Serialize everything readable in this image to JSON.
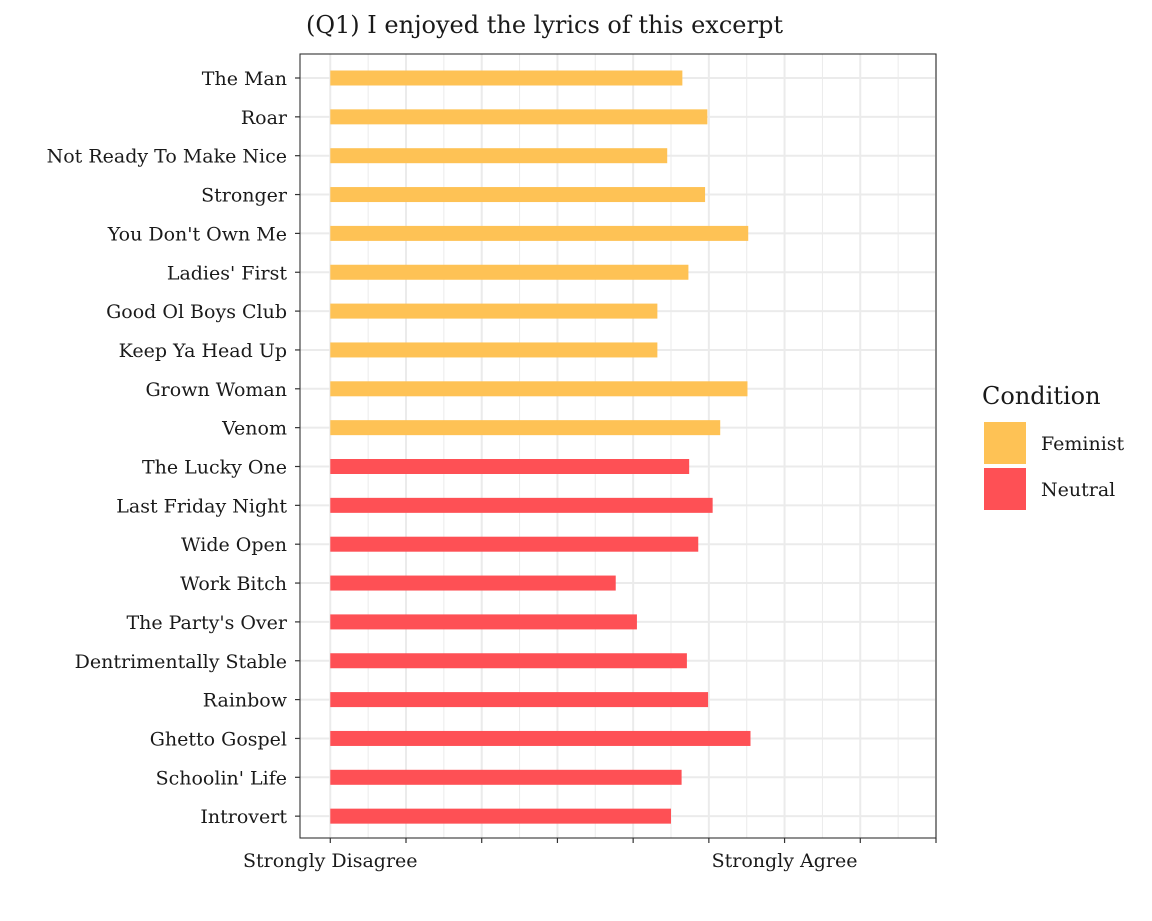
{
  "chart_data": {
    "type": "bar",
    "orientation": "horizontal",
    "title": "(Q1) I enjoyed the lyrics of this excerpt",
    "xlabel": "",
    "ylabel": "",
    "xlim": [
      0.6,
      9.0
    ],
    "x_ticks": [
      1,
      2,
      3,
      4,
      5,
      6,
      7,
      8,
      9
    ],
    "x_tick_labels": {
      "1": "Strongly Disagree",
      "7": "Strongly Agree"
    },
    "grid": true,
    "legend_position": "right",
    "legend_title": "Condition",
    "series": [
      {
        "name": "Feminist",
        "color": "#FEC255"
      },
      {
        "name": "Neutral",
        "color": "#FE5055"
      }
    ],
    "categories": [
      "The Man",
      "Roar",
      "Not Ready To Make Nice",
      "Stronger",
      "You Don't Own Me",
      "Ladies' First",
      "Good Ol Boys Club",
      "Keep Ya Head Up",
      "Grown Woman",
      "Venom",
      "The Lucky One",
      "Last Friday Night",
      "Wide Open",
      "Work Bitch",
      "The Party's Over",
      "Dentrimentally Stable",
      "Rainbow",
      "Ghetto Gospel",
      "Schoolin' Life",
      "Introvert"
    ],
    "bars": [
      {
        "label": "The Man",
        "condition": "Feminist",
        "value": 5.65
      },
      {
        "label": "Roar",
        "condition": "Feminist",
        "value": 5.98
      },
      {
        "label": "Not Ready To Make Nice",
        "condition": "Feminist",
        "value": 5.45
      },
      {
        "label": "Stronger",
        "condition": "Feminist",
        "value": 5.95
      },
      {
        "label": "You Don't Own Me",
        "condition": "Feminist",
        "value": 6.52
      },
      {
        "label": "Ladies' First",
        "condition": "Feminist",
        "value": 5.73
      },
      {
        "label": "Good Ol Boys Club",
        "condition": "Feminist",
        "value": 5.32
      },
      {
        "label": "Keep Ya Head Up",
        "condition": "Feminist",
        "value": 5.32
      },
      {
        "label": "Grown Woman",
        "condition": "Feminist",
        "value": 6.51
      },
      {
        "label": "Venom",
        "condition": "Feminist",
        "value": 6.15
      },
      {
        "label": "The Lucky One",
        "condition": "Neutral",
        "value": 5.74
      },
      {
        "label": "Last Friday Night",
        "condition": "Neutral",
        "value": 6.05
      },
      {
        "label": "Wide Open",
        "condition": "Neutral",
        "value": 5.86
      },
      {
        "label": "Work Bitch",
        "condition": "Neutral",
        "value": 4.77
      },
      {
        "label": "The Party's Over",
        "condition": "Neutral",
        "value": 5.05
      },
      {
        "label": "Dentrimentally Stable",
        "condition": "Neutral",
        "value": 5.71
      },
      {
        "label": "Rainbow",
        "condition": "Neutral",
        "value": 5.99
      },
      {
        "label": "Ghetto Gospel",
        "condition": "Neutral",
        "value": 6.55
      },
      {
        "label": "Schoolin' Life",
        "condition": "Neutral",
        "value": 5.64
      },
      {
        "label": "Introvert",
        "condition": "Neutral",
        "value": 5.5
      }
    ]
  }
}
